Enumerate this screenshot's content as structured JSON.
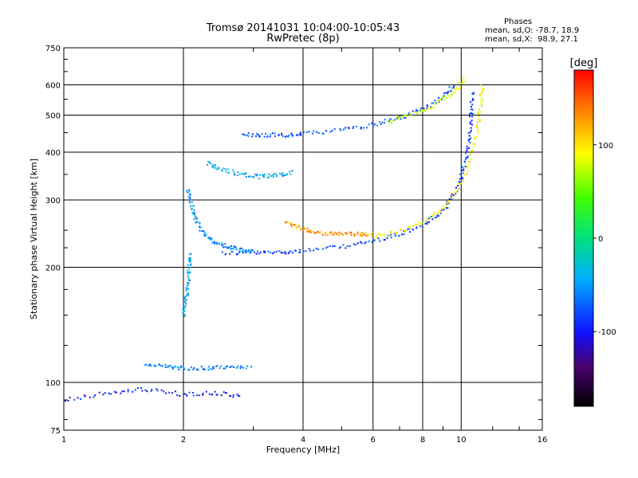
{
  "chart_data": {
    "type": "scatter",
    "title": "Tromsø 20141031 10:04:00-10:05:43",
    "subtitle": "RwPretec (8p)",
    "xlabel": "Frequency [MHz]",
    "ylabel": "Stationary phase Virtual Height [km]",
    "xscale": "log",
    "yscale": "log",
    "xlim": [
      1,
      16
    ],
    "ylim": [
      75,
      750
    ],
    "xticks": [
      1,
      2,
      4,
      6,
      8,
      10,
      16
    ],
    "xtick_labels": [
      "1",
      "2",
      "4",
      "6",
      "8",
      "10",
      "16"
    ],
    "yticks": [
      75,
      100,
      200,
      300,
      400,
      500,
      600,
      750
    ],
    "ytick_labels": [
      "75",
      "100",
      "200",
      "300",
      "400",
      "500",
      "600",
      "750"
    ],
    "grid": true,
    "colorbar": {
      "label": "[deg]",
      "range": [
        -180,
        180
      ],
      "ticks": [
        100,
        0,
        -100
      ],
      "tick_labels": [
        "100",
        "0",
        "-100"
      ]
    },
    "phase_stats": {
      "header": "Phases",
      "line_o": "mean, sd,O: -78.7, 18.9",
      "line_x": "mean, sd,X:  98.9, 27.1"
    },
    "traces": [
      {
        "points": [
          [
            2.5,
            218
          ],
          [
            3.0,
            218
          ],
          [
            3.5,
            219
          ],
          [
            4.0,
            221
          ],
          [
            5.0,
            226
          ],
          [
            6.0,
            234
          ],
          [
            7.0,
            244
          ],
          [
            8.0,
            258
          ],
          [
            9.0,
            280
          ],
          [
            9.8,
            320
          ],
          [
            10.2,
            370
          ],
          [
            10.5,
            430
          ],
          [
            10.6,
            500
          ],
          [
            10.7,
            580
          ]
        ],
        "phase": -85
      },
      {
        "points": [
          [
            2.05,
            320
          ],
          [
            2.1,
            290
          ],
          [
            2.15,
            265
          ],
          [
            2.25,
            245
          ],
          [
            2.4,
            232
          ],
          [
            2.6,
            226
          ],
          [
            2.8,
            222
          ],
          [
            3.0,
            220
          ]
        ],
        "phase": -55
      },
      {
        "points": [
          [
            2.0,
            150
          ],
          [
            2.03,
            165
          ],
          [
            2.05,
            180
          ],
          [
            2.07,
            200
          ],
          [
            2.09,
            220
          ]
        ],
        "phase": -45
      },
      {
        "points": [
          [
            3.6,
            262
          ],
          [
            3.9,
            255
          ],
          [
            4.2,
            248
          ],
          [
            4.6,
            245
          ],
          [
            5.0,
            244
          ],
          [
            5.5,
            244
          ],
          [
            6.0,
            244
          ]
        ],
        "phase": 130
      },
      {
        "points": [
          [
            6.0,
            240
          ],
          [
            7.0,
            248
          ],
          [
            8.0,
            262
          ],
          [
            9.0,
            285
          ],
          [
            10.0,
            330
          ],
          [
            10.6,
            390
          ],
          [
            11.0,
            460
          ],
          [
            11.2,
            530
          ],
          [
            11.3,
            600
          ]
        ],
        "phase": 90
      },
      {
        "points": [
          [
            2.8,
            445
          ],
          [
            3.2,
            443
          ],
          [
            3.6,
            443
          ],
          [
            4.0,
            446
          ],
          [
            5.0,
            458
          ],
          [
            6.0,
            472
          ],
          [
            7.0,
            492
          ],
          [
            8.0,
            518
          ],
          [
            9.0,
            556
          ],
          [
            9.6,
            600
          ]
        ],
        "phase": -75
      },
      {
        "points": [
          [
            6.5,
            480
          ],
          [
            7.5,
            500
          ],
          [
            8.5,
            530
          ],
          [
            9.5,
            570
          ],
          [
            10.3,
            625
          ]
        ],
        "phase": 80
      },
      {
        "points": [
          [
            2.3,
            375
          ],
          [
            2.5,
            360
          ],
          [
            2.8,
            350
          ],
          [
            3.1,
            345
          ],
          [
            3.4,
            348
          ],
          [
            3.8,
            355
          ]
        ],
        "phase": -45
      },
      {
        "points": [
          [
            1.6,
            112
          ],
          [
            1.8,
            110
          ],
          [
            2.0,
            109
          ],
          [
            2.3,
            109
          ],
          [
            2.6,
            110
          ],
          [
            3.0,
            110
          ]
        ],
        "phase": -60
      },
      {
        "points": [
          [
            1.0,
            90
          ],
          [
            1.3,
            94
          ],
          [
            1.6,
            96
          ],
          [
            2.0,
            93
          ],
          [
            2.4,
            94
          ],
          [
            2.8,
            92
          ]
        ],
        "phase": -95
      }
    ]
  }
}
